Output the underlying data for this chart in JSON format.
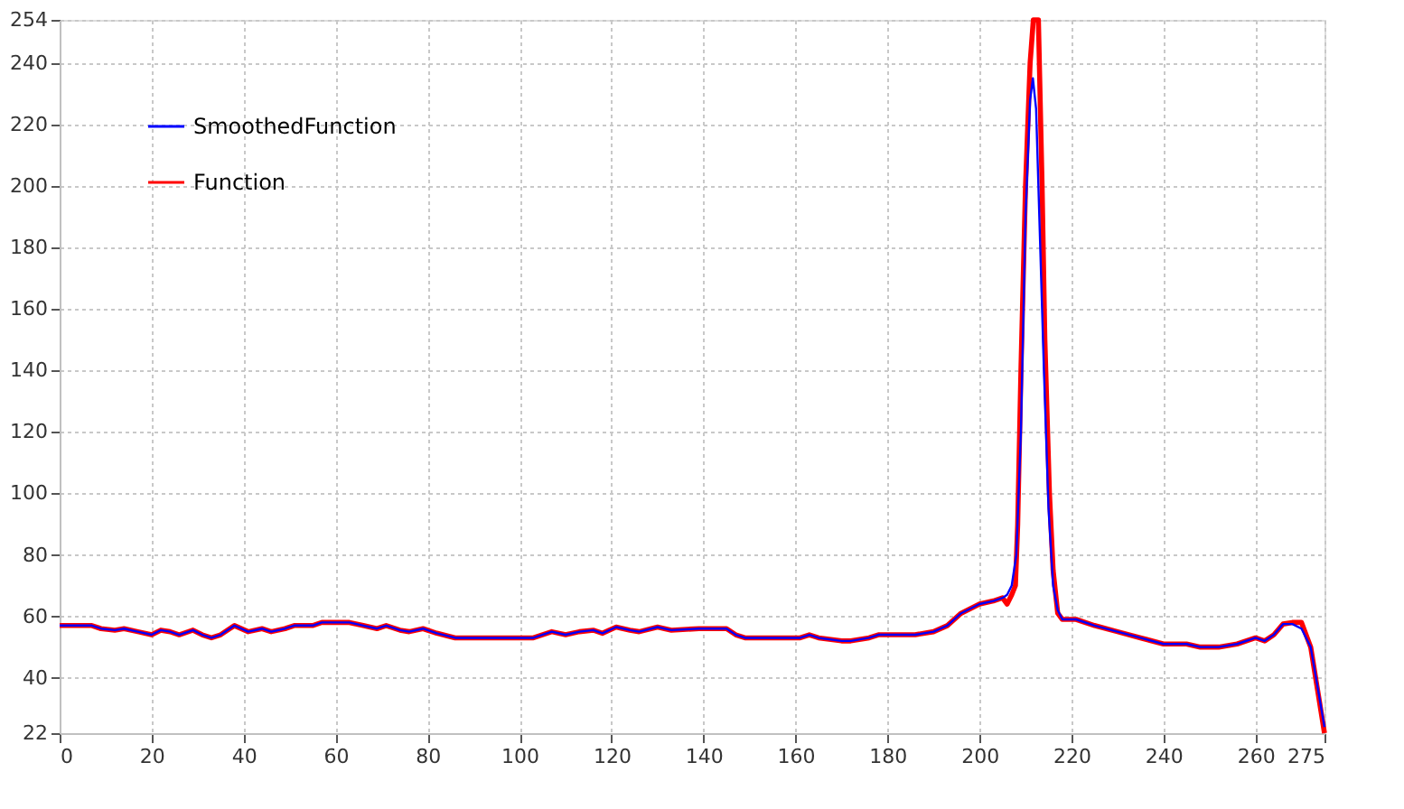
{
  "chart_data": {
    "type": "line",
    "xlim": [
      0,
      275
    ],
    "xticks": [
      0,
      20,
      40,
      60,
      80,
      100,
      120,
      140,
      160,
      180,
      200,
      220,
      240,
      260,
      275
    ],
    "ylim": [
      22,
      254
    ],
    "yticks": [
      22,
      40,
      60,
      80,
      100,
      120,
      140,
      160,
      180,
      200,
      220,
      240,
      254
    ],
    "grid": true,
    "legend": "top left",
    "marker": "none",
    "line_style": "solid",
    "series": [
      {
        "name": "SmoothedFunction",
        "color": "#0000ff",
        "x": [
          0,
          7,
          9,
          12,
          14,
          17,
          20,
          22,
          24,
          26,
          29,
          31,
          33,
          35,
          38,
          41,
          44,
          46,
          49,
          51,
          55,
          57,
          63,
          66,
          69,
          71,
          74,
          76,
          79,
          82,
          86,
          103,
          107,
          110,
          113,
          116,
          118,
          121,
          124,
          126,
          130,
          133,
          139,
          145,
          147,
          149,
          161,
          163,
          165,
          170,
          172,
          176,
          178,
          186,
          190,
          193,
          196,
          200,
          203,
          205,
          206,
          207,
          208,
          209,
          210,
          211,
          211.6,
          212.3,
          213,
          214,
          215,
          216,
          217,
          218,
          221,
          225,
          230,
          235,
          240,
          245,
          248,
          252,
          256,
          260,
          262,
          264,
          266,
          268,
          270,
          272,
          275
        ],
        "values": [
          57,
          57,
          56,
          55.5,
          56,
          55,
          54,
          55.5,
          55,
          54,
          55.5,
          54,
          53,
          54,
          57,
          55,
          56,
          55,
          56,
          57,
          57,
          58,
          58,
          57,
          56,
          57,
          55.5,
          55,
          56,
          54.5,
          53,
          53,
          55,
          54,
          55,
          55.5,
          54.5,
          56.5,
          55.5,
          55,
          56.5,
          55.5,
          56,
          56,
          54,
          53,
          53,
          54,
          53,
          52,
          52,
          53,
          54,
          54,
          55,
          57,
          61,
          64,
          65,
          66,
          67,
          70,
          80,
          120,
          190,
          228,
          235,
          225,
          190,
          140,
          95,
          70,
          62,
          59,
          59,
          57,
          55,
          53,
          51,
          51,
          50,
          50,
          51,
          53,
          52,
          54,
          57.5,
          57.5,
          56,
          50,
          24
        ]
      },
      {
        "name": "Function",
        "color": "#ff0000",
        "x": [
          0,
          7,
          9,
          12,
          14,
          17,
          20,
          22,
          24,
          26,
          29,
          31,
          33,
          35,
          38,
          41,
          44,
          46,
          49,
          51,
          55,
          57,
          63,
          66,
          69,
          71,
          74,
          76,
          79,
          82,
          86,
          103,
          107,
          110,
          113,
          116,
          118,
          121,
          124,
          126,
          130,
          133,
          139,
          145,
          147,
          149,
          161,
          163,
          165,
          170,
          172,
          176,
          178,
          186,
          190,
          193,
          196,
          200,
          203,
          205,
          206,
          207,
          207.8,
          208.3,
          209,
          210,
          211,
          211.7,
          212.8,
          213.6,
          214.2,
          215.2,
          216,
          217,
          218,
          221,
          225,
          230,
          235,
          240,
          245,
          248,
          252,
          256,
          260,
          262,
          264,
          266,
          268,
          270,
          272,
          275
        ],
        "values": [
          57,
          57,
          56,
          55.5,
          56,
          55,
          54,
          55.5,
          55,
          54,
          55.5,
          54,
          53,
          54,
          57,
          55,
          56,
          55,
          56,
          57,
          57,
          58,
          58,
          57,
          56,
          57,
          55.5,
          55,
          56,
          54.5,
          53,
          53,
          55,
          54,
          55,
          55.5,
          54.5,
          56.5,
          55.5,
          55,
          56.5,
          55.5,
          56,
          56,
          54,
          53,
          53,
          54,
          53,
          52,
          52,
          53,
          54,
          54,
          55,
          57,
          61,
          64,
          65,
          66,
          64,
          67,
          70,
          90,
          140,
          200,
          240,
          254,
          254,
          200,
          150,
          100,
          75,
          61,
          59,
          59,
          57,
          55,
          53,
          51,
          51,
          50,
          50,
          51,
          53,
          52,
          54,
          57.5,
          58,
          58,
          50,
          22
        ]
      }
    ]
  }
}
